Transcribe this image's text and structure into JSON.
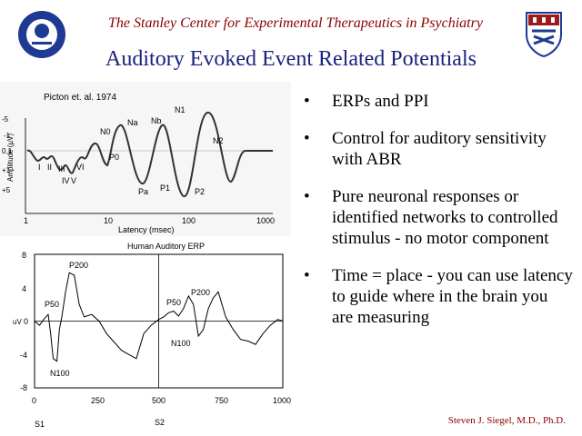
{
  "header": {
    "title": "The Stanley Center for Experimental Therapeutics in Psychiatry"
  },
  "slide_title": "Auditory Evoked Event Related Potentials",
  "bullets": [
    {
      "text": "ERPs and PPI"
    },
    {
      "text": "Control for auditory sensitivity with ABR"
    },
    {
      "text": "Pure neuronal responses or identified networks to controlled stimulus - no motor component"
    },
    {
      "text": "Time = place - you can use latency to guide where in the brain you are measuring"
    }
  ],
  "bullet_symbol": "•",
  "footer_author": "Steven J. Siegel, M.D., Ph.D.",
  "colors": {
    "header_text": "#8b0000",
    "title_text": "#1a237e",
    "logo_blue": "#1f3a93",
    "shield_red": "#9b1b1b"
  },
  "chart_data": [
    {
      "type": "line",
      "title": "Picton et. al. 1974",
      "xlabel": "Latency (msec)",
      "ylabel": "Amplitude (µV)",
      "x_scale": "log",
      "x_ticks": [
        "1",
        "10",
        "100",
        "1000"
      ],
      "y_ticks": [
        "-5",
        "-1",
        "0.1",
        "+1",
        "+5"
      ],
      "peak_labels": [
        "I",
        "II",
        "III",
        "IV",
        "V",
        "VI",
        "N0",
        "P0",
        "Na",
        "Pa",
        "Nb",
        "P1",
        "N1",
        "P2",
        "N2"
      ]
    },
    {
      "type": "line",
      "title": "Human Auditory ERP",
      "ylabel": "uV",
      "ylim": [
        -8,
        8
      ],
      "xlim": [
        0,
        1000
      ],
      "x_ticks": [
        "0",
        "250",
        "500",
        "750",
        "1000"
      ],
      "y_ticks": [
        "8",
        "4",
        "0",
        "-4",
        "-8"
      ],
      "markers": [
        "S1",
        "S2"
      ],
      "annotations": [
        "P200",
        "P50",
        "N100",
        "P50",
        "P200",
        "N100"
      ],
      "series": [
        {
          "x": [
            0,
            20,
            40,
            55,
            65,
            75,
            90,
            100,
            110,
            125,
            140,
            160,
            180,
            200,
            230,
            260,
            290,
            320,
            350,
            380,
            410,
            440,
            470,
            500,
            520,
            540,
            560,
            580,
            600,
            620,
            640,
            660,
            680,
            700,
            720,
            740,
            770,
            800,
            830,
            860,
            890,
            920,
            950,
            980,
            1000
          ],
          "y": [
            0,
            -0.5,
            0.3,
            0.8,
            -1.5,
            -4.5,
            -4.8,
            -1.0,
            0.5,
            3.5,
            5.8,
            5.5,
            2.0,
            0.5,
            0.8,
            0,
            -1.5,
            -2.5,
            -3.5,
            -4.0,
            -4.5,
            -1.5,
            -0.5,
            0.2,
            0.5,
            1.0,
            1.2,
            0.6,
            1.5,
            3.0,
            2.0,
            -1.8,
            -1.0,
            1.5,
            2.8,
            3.5,
            0.5,
            -1.0,
            -2.2,
            -2.4,
            -2.8,
            -1.5,
            -0.5,
            0.2,
            0
          ]
        }
      ]
    }
  ]
}
